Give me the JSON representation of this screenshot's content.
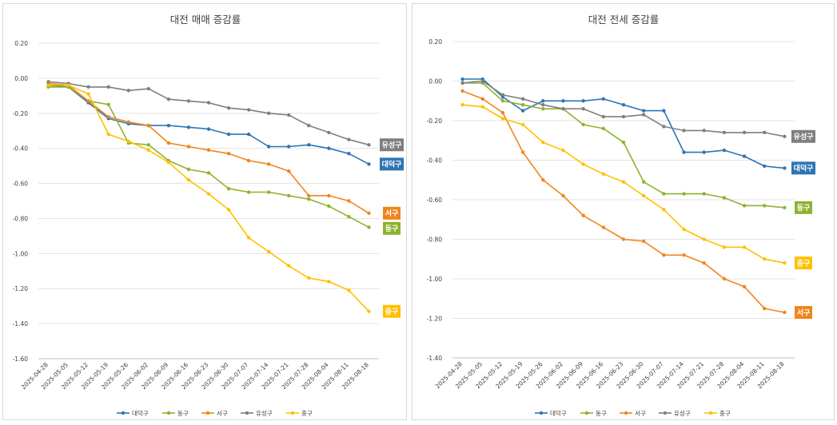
{
  "chart_data": [
    {
      "type": "line",
      "title": "대전 매매 증감률",
      "ylim": [
        -1.6,
        0.2
      ],
      "yticks": [
        0.2,
        0.0,
        -0.2,
        -0.4,
        -0.6,
        -0.8,
        -1.0,
        -1.2,
        -1.4,
        -1.6
      ],
      "ytick_labels": [
        "0.20",
        "0.00",
        "-0.20",
        "-0.40",
        "-0.60",
        "-0.80",
        "-1.00",
        "-1.20",
        "-1.40",
        "-1.60"
      ],
      "grid": true,
      "legend": "bottom",
      "categories": [
        "2025-04-28",
        "2025-05-05",
        "2025-05-12",
        "2025-05-19",
        "2025-05-26",
        "2025-06-02",
        "2025-06-09",
        "2025-06-16",
        "2025-06-23",
        "2025-06-30",
        "2025-07-07",
        "2025-07-14",
        "2025-07-21",
        "2025-07-28",
        "2025-08-04",
        "2025-08-11",
        "2025-08-18"
      ],
      "series": [
        {
          "name": "대덕구",
          "color": "#2e75b6",
          "end_label": "대덕구",
          "values": [
            -0.04,
            -0.05,
            -0.14,
            -0.23,
            -0.26,
            -0.27,
            -0.27,
            -0.28,
            -0.29,
            -0.32,
            -0.32,
            -0.39,
            -0.39,
            -0.38,
            -0.4,
            -0.43,
            -0.49
          ]
        },
        {
          "name": "동구",
          "color": "#8db32e",
          "end_label": "동구",
          "values": [
            -0.05,
            -0.05,
            -0.13,
            -0.15,
            -0.37,
            -0.38,
            -0.47,
            -0.52,
            -0.54,
            -0.63,
            -0.65,
            -0.65,
            -0.67,
            -0.69,
            -0.73,
            -0.79,
            -0.85
          ]
        },
        {
          "name": "서구",
          "color": "#f0851c",
          "end_label": "서구",
          "values": [
            -0.03,
            -0.04,
            -0.13,
            -0.22,
            -0.25,
            -0.27,
            -0.37,
            -0.39,
            -0.41,
            -0.43,
            -0.47,
            -0.49,
            -0.53,
            -0.67,
            -0.67,
            -0.7,
            -0.77
          ]
        },
        {
          "name": "유성구",
          "color": "#7f7f7f",
          "end_label": "유성구",
          "values": [
            -0.02,
            -0.03,
            -0.05,
            -0.05,
            -0.07,
            -0.06,
            -0.12,
            -0.13,
            -0.14,
            -0.17,
            -0.18,
            -0.2,
            -0.21,
            -0.27,
            -0.31,
            -0.35,
            -0.38
          ]
        },
        {
          "name": "중구",
          "color": "#ffc000",
          "end_label": "중구",
          "values": [
            -0.04,
            -0.04,
            -0.09,
            -0.32,
            -0.36,
            -0.41,
            -0.48,
            -0.58,
            -0.66,
            -0.75,
            -0.91,
            -0.99,
            -1.07,
            -1.14,
            -1.16,
            -1.21,
            -1.33
          ]
        }
      ]
    },
    {
      "type": "line",
      "title": "대전 전세 증감률",
      "ylim": [
        -1.4,
        0.2
      ],
      "yticks": [
        0.2,
        0.0,
        -0.2,
        -0.4,
        -0.6,
        -0.8,
        -1.0,
        -1.2,
        -1.4
      ],
      "ytick_labels": [
        "0.20",
        "0.00",
        "-0.20",
        "-0.40",
        "-0.60",
        "-0.80",
        "-1.00",
        "-1.20",
        "-1.40"
      ],
      "grid": true,
      "legend": "bottom",
      "categories": [
        "2025-04-28",
        "2025-05-05",
        "2025-05-12",
        "2025-05-19",
        "2025-05-26",
        "2025-06-02",
        "2025-06-09",
        "2025-06-16",
        "2025-06-23",
        "2025-06-30",
        "2025-07-07",
        "2025-07-14",
        "2025-07-21",
        "2025-07-28",
        "2025-08-04",
        "2025-08-11",
        "2025-08-18"
      ],
      "series": [
        {
          "name": "대덕구",
          "color": "#2e75b6",
          "end_label": "대덕구",
          "values": [
            0.01,
            0.01,
            -0.08,
            -0.15,
            -0.1,
            -0.1,
            -0.1,
            -0.09,
            -0.12,
            -0.15,
            -0.15,
            -0.36,
            -0.36,
            -0.35,
            -0.38,
            -0.43,
            -0.44
          ]
        },
        {
          "name": "동구",
          "color": "#8db32e",
          "end_label": "동구",
          "values": [
            -0.01,
            -0.01,
            -0.1,
            -0.12,
            -0.14,
            -0.14,
            -0.22,
            -0.24,
            -0.31,
            -0.51,
            -0.57,
            -0.57,
            -0.57,
            -0.59,
            -0.63,
            -0.63,
            -0.64
          ]
        },
        {
          "name": "서구",
          "color": "#f0851c",
          "end_label": "서구",
          "values": [
            -0.05,
            -0.09,
            -0.16,
            -0.36,
            -0.5,
            -0.58,
            -0.68,
            -0.74,
            -0.8,
            -0.81,
            -0.88,
            -0.88,
            -0.92,
            -1.0,
            -1.04,
            -1.15,
            -1.17
          ]
        },
        {
          "name": "유성구",
          "color": "#7f7f7f",
          "end_label": "유성구",
          "values": [
            -0.01,
            0.0,
            -0.07,
            -0.09,
            -0.12,
            -0.14,
            -0.14,
            -0.18,
            -0.18,
            -0.17,
            -0.23,
            -0.25,
            -0.25,
            -0.26,
            -0.26,
            -0.26,
            -0.28
          ]
        },
        {
          "name": "중구",
          "color": "#ffc000",
          "end_label": "중구",
          "values": [
            -0.12,
            -0.13,
            -0.19,
            -0.22,
            -0.31,
            -0.35,
            -0.42,
            -0.47,
            -0.51,
            -0.58,
            -0.65,
            -0.75,
            -0.8,
            -0.84,
            -0.84,
            -0.9,
            -0.92
          ]
        }
      ]
    }
  ]
}
